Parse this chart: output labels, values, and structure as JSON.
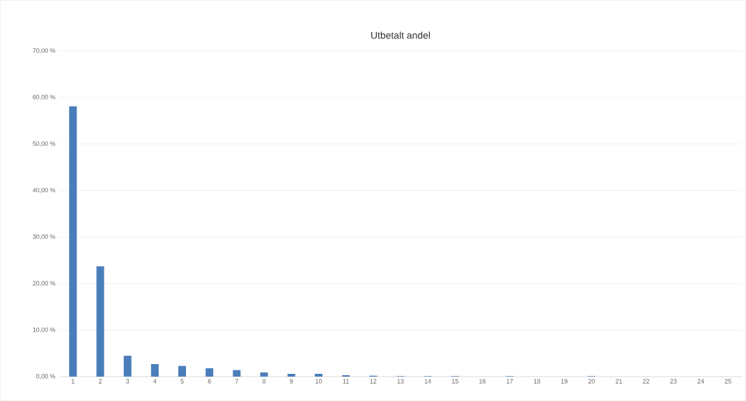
{
  "chart_data": {
    "type": "bar",
    "title": "Utbetalt andel",
    "categories": [
      "1",
      "2",
      "3",
      "4",
      "5",
      "6",
      "7",
      "8",
      "9",
      "10",
      "11",
      "12",
      "13",
      "14",
      "15",
      "16",
      "17",
      "18",
      "19",
      "20",
      "21",
      "22",
      "23",
      "24",
      "25"
    ],
    "values": [
      58.1,
      23.7,
      4.5,
      2.7,
      2.3,
      1.8,
      1.4,
      0.9,
      0.6,
      0.6,
      0.3,
      0.2,
      0.1,
      0.1,
      0.1,
      0,
      0.1,
      0,
      0,
      0.1,
      0,
      0,
      0,
      0,
      0
    ],
    "color": "#4a7ebb",
    "ylim": [
      0,
      70
    ],
    "yticks": [
      {
        "value": 0,
        "label": "0,00 %"
      },
      {
        "value": 10,
        "label": "10,00 %"
      },
      {
        "value": 20,
        "label": "20,00 %"
      },
      {
        "value": 30,
        "label": "30,00 %"
      },
      {
        "value": 40,
        "label": "40,00 %"
      },
      {
        "value": 50,
        "label": "50,00 %"
      },
      {
        "value": 60,
        "label": "60,00 %"
      },
      {
        "value": 70,
        "label": "70,00 %"
      }
    ],
    "grid": "y"
  }
}
